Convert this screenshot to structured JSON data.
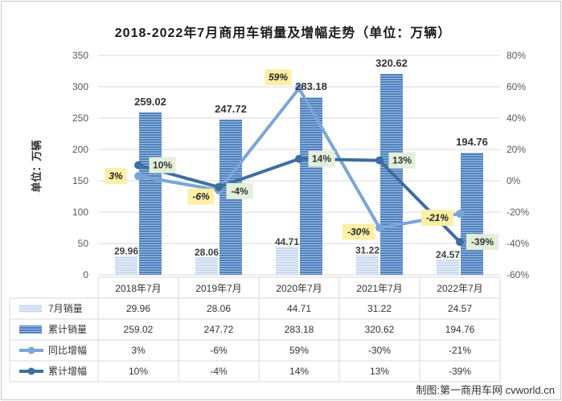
{
  "chart_data": {
    "type": "bar",
    "title": "2018-2022年7月商用车销量及增幅走势（单位：万辆）",
    "ylabel": "单位：万辆",
    "ylim": [
      0,
      350
    ],
    "y2lim": [
      -60,
      80
    ],
    "y_ticks": [
      "0",
      "50",
      "100",
      "150",
      "200",
      "250",
      "300",
      "350"
    ],
    "y2_ticks": [
      "-60%",
      "-40%",
      "-20%",
      "0%",
      "20%",
      "40%",
      "60%",
      "80%"
    ],
    "categories": [
      "2018年7月",
      "2019年7月",
      "2020年7月",
      "2021年7月",
      "2022年7月"
    ],
    "series": [
      {
        "name": "7月销量",
        "kind": "bar",
        "axis": "left",
        "color": "#c9d9ef",
        "values": [
          29.96,
          28.06,
          44.71,
          31.22,
          24.57
        ],
        "labels": [
          "29.96",
          "28.06",
          "44.71",
          "31.22",
          "24.57"
        ]
      },
      {
        "name": "累计销量",
        "kind": "bar",
        "axis": "left",
        "color": "#4f81bd",
        "values": [
          259.02,
          247.72,
          283.18,
          320.62,
          194.76
        ],
        "labels": [
          "259.02",
          "247.72",
          "283.18",
          "320.62",
          "194.76"
        ]
      },
      {
        "name": "同比增幅",
        "kind": "line",
        "axis": "right",
        "color": "#7aa6d6",
        "values": [
          3,
          -6,
          59,
          -30,
          -21
        ],
        "labels": [
          "3%",
          "-6%",
          "59%",
          "-30%",
          "-21%"
        ]
      },
      {
        "name": "累计增幅",
        "kind": "line",
        "axis": "right",
        "color": "#3d6e9e",
        "values": [
          10,
          -4,
          14,
          13,
          -39
        ],
        "labels": [
          "10%",
          "-4%",
          "14%",
          "13%",
          "-39%"
        ]
      }
    ],
    "annotation_colors": {
      "yoy_box": "#fdf0a6",
      "cum_box": "#e2efda"
    },
    "grid": true,
    "legend": "data-table-below"
  },
  "credit": "制图:第一商用车网 cvworld.cn"
}
